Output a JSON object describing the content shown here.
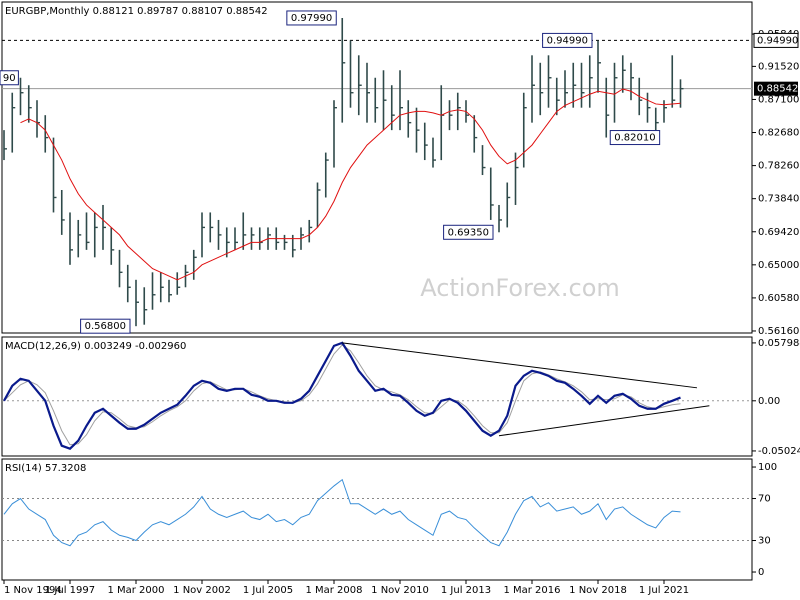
{
  "chart_data": [
    {
      "type": "ohlc",
      "title": "EURGBP,Monthly  0.88121 0.89787 0.88107 0.88542",
      "watermark": "ActionForex.com",
      "color": "#2f4a4a",
      "categories": [
        "1 Nov 1994",
        null,
        null,
        null,
        null,
        null,
        null,
        null,
        "1 Jul 1997",
        null,
        null,
        null,
        null,
        null,
        null,
        null,
        "1 Mar 2000",
        null,
        null,
        null,
        null,
        null,
        null,
        null,
        "1 Nov 2002",
        null,
        null,
        null,
        null,
        null,
        null,
        null,
        "1 Jul 2005",
        null,
        null,
        null,
        null,
        null,
        null,
        null,
        "1 Mar 2008",
        null,
        null,
        null,
        null,
        null,
        null,
        null,
        "1 Nov 2010",
        null,
        null,
        null,
        null,
        null,
        null,
        null,
        "1 Jul 2013",
        null,
        null,
        null,
        null,
        null,
        null,
        null,
        "1 Mar 2016",
        null,
        null,
        null,
        null,
        null,
        null,
        null,
        "1 Nov 2018",
        null,
        null,
        null,
        null,
        null,
        null,
        null,
        "1 Jul 2021",
        null,
        null
      ],
      "high": [
        0.83,
        0.88,
        0.9,
        0.89,
        0.87,
        0.85,
        0.82,
        0.75,
        0.72,
        0.71,
        0.72,
        0.72,
        0.73,
        0.7,
        0.67,
        0.65,
        0.63,
        0.62,
        0.64,
        0.64,
        0.63,
        0.64,
        0.65,
        0.67,
        0.72,
        0.72,
        0.71,
        0.7,
        0.7,
        0.72,
        0.7,
        0.7,
        0.7,
        0.7,
        0.69,
        0.69,
        0.7,
        0.71,
        0.76,
        0.8,
        0.87,
        0.9799,
        0.95,
        0.93,
        0.92,
        0.9,
        0.91,
        0.89,
        0.91,
        0.87,
        0.86,
        0.84,
        0.82,
        0.89,
        0.87,
        0.88,
        0.87,
        0.85,
        0.81,
        0.78,
        0.73,
        0.76,
        0.8,
        0.88,
        0.93,
        0.92,
        0.93,
        0.9,
        0.91,
        0.92,
        0.92,
        0.93,
        0.9499,
        0.9,
        0.92,
        0.93,
        0.92,
        0.9,
        0.88,
        0.86,
        0.87,
        0.93,
        0.89787
      ],
      "low": [
        0.79,
        0.8,
        0.85,
        0.84,
        0.82,
        0.8,
        0.72,
        0.69,
        0.65,
        0.66,
        0.67,
        0.66,
        0.67,
        0.65,
        0.62,
        0.6,
        0.568,
        0.57,
        0.59,
        0.6,
        0.6,
        0.61,
        0.62,
        0.63,
        0.66,
        0.68,
        0.67,
        0.66,
        0.67,
        0.67,
        0.67,
        0.67,
        0.67,
        0.67,
        0.67,
        0.66,
        0.67,
        0.68,
        0.7,
        0.74,
        0.78,
        0.84,
        0.86,
        0.85,
        0.84,
        0.84,
        0.83,
        0.83,
        0.83,
        0.82,
        0.8,
        0.79,
        0.78,
        0.79,
        0.83,
        0.83,
        0.84,
        0.8,
        0.77,
        0.71,
        0.6935,
        0.7,
        0.73,
        0.78,
        0.84,
        0.85,
        0.86,
        0.85,
        0.86,
        0.86,
        0.86,
        0.86,
        0.88,
        0.8201,
        0.84,
        0.88,
        0.87,
        0.85,
        0.84,
        0.83,
        0.84,
        0.86,
        0.86
      ],
      "close": [
        0.805,
        0.86,
        0.88,
        0.86,
        0.84,
        0.82,
        0.74,
        0.71,
        0.67,
        0.69,
        0.68,
        0.7,
        0.7,
        0.67,
        0.64,
        0.62,
        0.6,
        0.59,
        0.61,
        0.62,
        0.61,
        0.62,
        0.64,
        0.66,
        0.7,
        0.7,
        0.69,
        0.68,
        0.68,
        0.69,
        0.69,
        0.68,
        0.69,
        0.68,
        0.68,
        0.67,
        0.69,
        0.7,
        0.75,
        0.79,
        0.86,
        0.92,
        0.88,
        0.89,
        0.88,
        0.86,
        0.87,
        0.85,
        0.86,
        0.84,
        0.83,
        0.81,
        0.79,
        0.85,
        0.85,
        0.86,
        0.85,
        0.82,
        0.78,
        0.73,
        0.71,
        0.74,
        0.78,
        0.86,
        0.89,
        0.88,
        0.9,
        0.87,
        0.88,
        0.89,
        0.88,
        0.9,
        0.92,
        0.85,
        0.9,
        0.91,
        0.9,
        0.87,
        0.86,
        0.84,
        0.86,
        0.87,
        0.88542
      ],
      "ma": {
        "color": "#e01010",
        "values": [
          null,
          null,
          0.84,
          0.845,
          0.84,
          0.83,
          0.81,
          0.79,
          0.765,
          0.745,
          0.73,
          0.72,
          0.71,
          0.7,
          0.69,
          0.675,
          0.665,
          0.655,
          0.645,
          0.64,
          0.635,
          0.63,
          0.635,
          0.64,
          0.65,
          0.655,
          0.66,
          0.665,
          0.67,
          0.675,
          0.68,
          0.68,
          0.685,
          0.685,
          0.685,
          0.685,
          0.685,
          0.69,
          0.7,
          0.715,
          0.735,
          0.76,
          0.78,
          0.795,
          0.81,
          0.82,
          0.83,
          0.84,
          0.85,
          0.853,
          0.855,
          0.855,
          0.853,
          0.85,
          0.855,
          0.857,
          0.855,
          0.845,
          0.83,
          0.81,
          0.795,
          0.785,
          0.79,
          0.8,
          0.81,
          0.825,
          0.84,
          0.855,
          0.863,
          0.868,
          0.873,
          0.878,
          0.882,
          0.88,
          0.878,
          0.885,
          0.882,
          0.875,
          0.87,
          0.865,
          0.864,
          0.865,
          0.866
        ]
      },
      "ylim": [
        0.5589,
        0.9999
      ],
      "yticks": [
        {
          "value": 0.9584,
          "label": "0.95840"
        },
        {
          "value": 0.9152,
          "label": "0.91520"
        },
        {
          "value": 0.871,
          "label": "0.87100"
        },
        {
          "value": 0.8268,
          "label": "0.82680"
        },
        {
          "value": 0.7826,
          "label": "0.78260"
        },
        {
          "value": 0.7384,
          "label": "0.73840"
        },
        {
          "value": 0.6942,
          "label": "0.69420"
        },
        {
          "value": 0.65,
          "label": "0.65000"
        },
        {
          "value": 0.6058,
          "label": "0.60580"
        },
        {
          "value": 0.5616,
          "label": "0.56160"
        }
      ],
      "last_price": {
        "value": 0.88542,
        "label": "0.88542"
      },
      "level": {
        "value": 0.9499,
        "label": "0.94990"
      },
      "annotations": [
        {
          "label": "90",
          "bar": 2,
          "side": "left"
        },
        {
          "label": "0.97990",
          "value": 0.9799,
          "bar": 41,
          "side": "left"
        },
        {
          "label": "0.94990",
          "value": 0.9499,
          "bar": 72,
          "side": "left"
        },
        {
          "label": "0.82010",
          "value": 0.8201,
          "bar": 73,
          "side": "right"
        },
        {
          "label": "0.69350",
          "value": 0.6935,
          "bar": 60,
          "side": "left"
        },
        {
          "label": "0.56800",
          "value": 0.568,
          "bar": 16,
          "side": "left"
        }
      ]
    },
    {
      "type": "macd",
      "title": "MACD(12,26,9) 0.003249 -0.002960",
      "macd": {
        "color": "#0a1a8c",
        "values": [
          0.0,
          0.015,
          0.022,
          0.02,
          0.01,
          0.0,
          -0.025,
          -0.045,
          -0.048,
          -0.04,
          -0.025,
          -0.012,
          -0.008,
          -0.015,
          -0.022,
          -0.028,
          -0.028,
          -0.024,
          -0.018,
          -0.012,
          -0.008,
          -0.004,
          0.005,
          0.015,
          0.02,
          0.018,
          0.012,
          0.01,
          0.012,
          0.012,
          0.006,
          0.004,
          0.0,
          0.0,
          -0.002,
          -0.002,
          0.002,
          0.01,
          0.025,
          0.04,
          0.055,
          0.058,
          0.045,
          0.03,
          0.02,
          0.01,
          0.012,
          0.006,
          0.005,
          -0.002,
          -0.01,
          -0.015,
          -0.012,
          0.0,
          0.002,
          -0.002,
          -0.01,
          -0.02,
          -0.03,
          -0.035,
          -0.03,
          -0.015,
          0.015,
          0.025,
          0.03,
          0.028,
          0.025,
          0.02,
          0.018,
          0.012,
          0.005,
          -0.003,
          0.005,
          -0.002,
          0.005,
          0.007,
          0.002,
          -0.005,
          -0.008,
          -0.008,
          -0.003,
          0.0,
          0.003249
        ]
      },
      "signal": {
        "color": "#a0a0a0",
        "values": [
          0.0,
          0.008,
          0.016,
          0.02,
          0.016,
          0.008,
          -0.01,
          -0.03,
          -0.044,
          -0.043,
          -0.034,
          -0.02,
          -0.011,
          -0.012,
          -0.018,
          -0.025,
          -0.027,
          -0.026,
          -0.021,
          -0.015,
          -0.01,
          -0.006,
          0.0,
          0.01,
          0.017,
          0.019,
          0.015,
          0.011,
          0.011,
          0.012,
          0.009,
          0.005,
          0.002,
          0.0,
          -0.001,
          -0.002,
          0.0,
          0.006,
          0.017,
          0.032,
          0.047,
          0.056,
          0.05,
          0.038,
          0.025,
          0.015,
          0.011,
          0.009,
          0.006,
          0.001,
          -0.006,
          -0.012,
          -0.013,
          -0.006,
          0.001,
          0.0,
          -0.006,
          -0.015,
          -0.025,
          -0.032,
          -0.032,
          -0.022,
          0.0,
          0.02,
          0.027,
          0.029,
          0.026,
          0.022,
          0.019,
          0.015,
          0.009,
          0.001,
          0.002,
          0.001,
          0.002,
          0.006,
          0.004,
          -0.002,
          -0.006,
          -0.008,
          -0.006,
          -0.004,
          -0.00296
        ]
      },
      "ylim": [
        -0.0543,
        0.0629
      ],
      "yticks": [
        0.057984,
        {
          "value": 0,
          "label": "0.00"
        },
        -0.050241
      ],
      "trendlines": [
        {
          "x": [
            41,
            84
          ],
          "y": [
            0.058,
            0.013
          ]
        },
        {
          "x": [
            60,
            85.5
          ],
          "y": [
            -0.035,
            -0.005
          ]
        }
      ]
    },
    {
      "type": "rsi",
      "title": "RSI(14) 57.3208",
      "color": "#3a8fd8",
      "values": [
        55,
        65,
        70,
        60,
        55,
        50,
        35,
        28,
        25,
        35,
        38,
        45,
        48,
        40,
        35,
        33,
        30,
        38,
        45,
        48,
        45,
        50,
        55,
        62,
        72,
        60,
        55,
        52,
        55,
        58,
        52,
        50,
        55,
        48,
        50,
        45,
        52,
        55,
        68,
        75,
        82,
        88,
        65,
        65,
        60,
        55,
        60,
        55,
        58,
        50,
        45,
        40,
        35,
        55,
        58,
        52,
        50,
        42,
        35,
        28,
        25,
        38,
        55,
        68,
        72,
        62,
        66,
        58,
        60,
        62,
        55,
        58,
        65,
        50,
        60,
        62,
        55,
        50,
        45,
        42,
        52,
        58,
        57.32
      ],
      "ylim": [
        -7.6,
        106.7
      ],
      "yticks": [
        100,
        70,
        30,
        0
      ],
      "levels": [
        70,
        30
      ]
    }
  ]
}
